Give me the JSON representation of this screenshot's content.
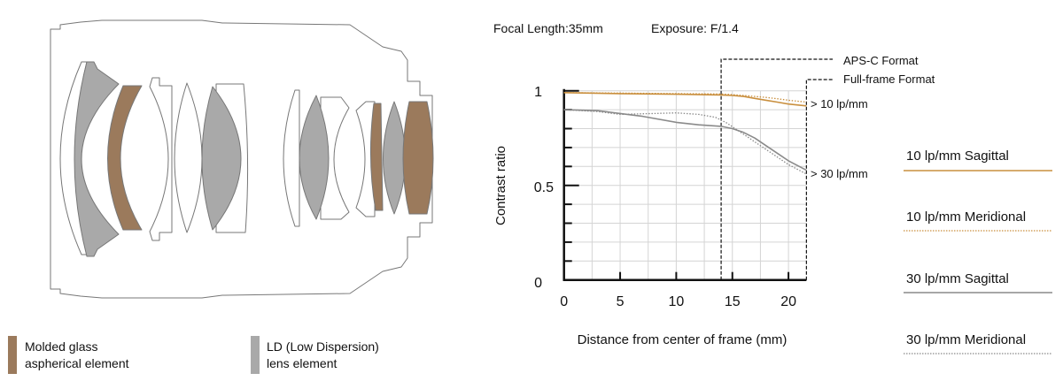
{
  "header": {
    "focal_length": "Focal Length:35mm",
    "exposure": "Exposure: F/1.4"
  },
  "lens_legend": [
    {
      "line1": "Molded glass",
      "line2": "aspherical element",
      "color": "#9b7a5c"
    },
    {
      "line1": "LD (Low Dispersion)",
      "line2": "lens element",
      "color": "#a9a9a9"
    }
  ],
  "chart_data": {
    "type": "line",
    "title": "",
    "xlabel": "Distance from center of frame (mm)",
    "ylabel": "Contrast ratio",
    "xlim": [
      0,
      21.6
    ],
    "ylim": [
      0,
      1
    ],
    "x_ticks": [
      "0",
      "5",
      "10",
      "15",
      "20"
    ],
    "y_ticks": [
      "0",
      "0.5",
      "1"
    ],
    "grid": true,
    "markers": [
      {
        "label": "APS-C Format",
        "x": 14
      },
      {
        "label": "Full-frame Format",
        "x": 21.6
      }
    ],
    "annotations": [
      "> 10 lp/mm",
      "> 30 lp/mm"
    ],
    "series": [
      {
        "name": "10 lp/mm Sagittal",
        "color": "#c98f3e",
        "style": "solid",
        "x": [
          0,
          5,
          10,
          14,
          15,
          16,
          17,
          18,
          19,
          20,
          21.6
        ],
        "y": [
          0.99,
          0.985,
          0.982,
          0.978,
          0.975,
          0.97,
          0.96,
          0.95,
          0.94,
          0.93,
          0.92
        ]
      },
      {
        "name": "10 lp/mm Meridional",
        "color": "#c98f3e",
        "style": "dotted",
        "x": [
          0,
          5,
          10,
          14,
          15,
          16,
          17,
          18,
          19,
          20,
          21.6
        ],
        "y": [
          0.99,
          0.988,
          0.985,
          0.983,
          0.98,
          0.975,
          0.97,
          0.965,
          0.958,
          0.95,
          0.94
        ]
      },
      {
        "name": "30 lp/mm Sagittal",
        "color": "#8a8a8a",
        "style": "solid",
        "x": [
          0,
          3,
          5,
          7,
          10,
          12,
          14,
          15,
          16,
          17,
          18,
          19,
          20,
          21.6
        ],
        "y": [
          0.9,
          0.895,
          0.88,
          0.865,
          0.833,
          0.82,
          0.812,
          0.8,
          0.78,
          0.75,
          0.71,
          0.67,
          0.63,
          0.58
        ]
      },
      {
        "name": "30 lp/mm Meridional",
        "color": "#8a8a8a",
        "style": "dotted",
        "x": [
          0,
          3,
          5,
          8,
          10,
          12,
          13.5,
          14.5,
          15.5,
          16.5,
          17.5,
          18.5,
          20,
          21.6
        ],
        "y": [
          0.9,
          0.89,
          0.875,
          0.88,
          0.883,
          0.875,
          0.86,
          0.83,
          0.79,
          0.75,
          0.71,
          0.67,
          0.61,
          0.56
        ]
      }
    ]
  }
}
